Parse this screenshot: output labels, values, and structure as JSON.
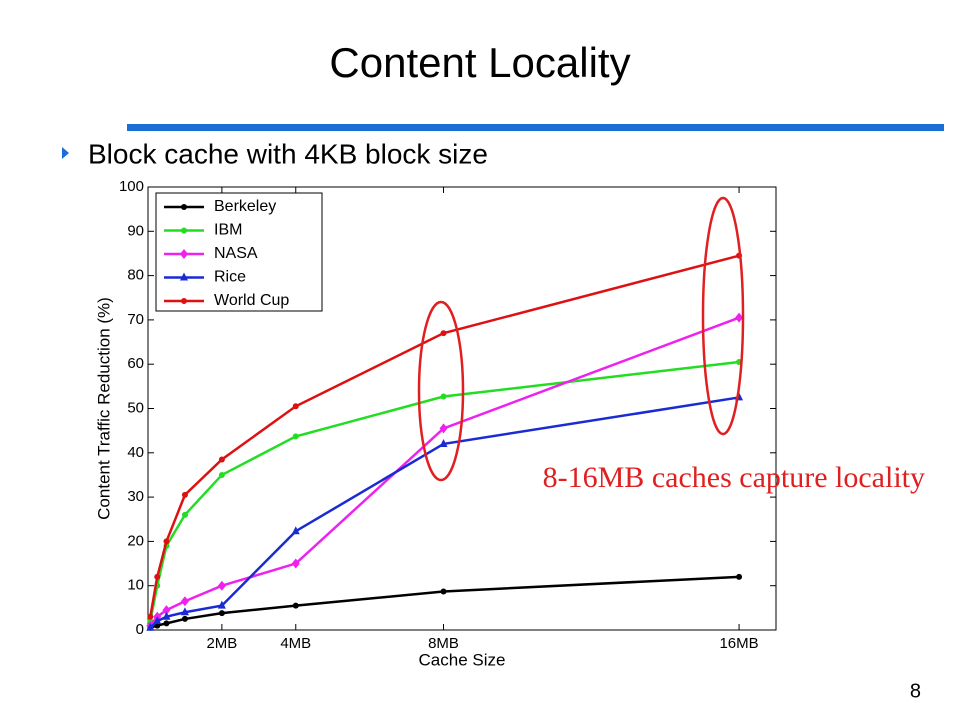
{
  "slide": {
    "title": "Content Locality",
    "bullet": "Block cache with 4KB block size",
    "annotation": "8-16MB caches capture locality",
    "page_number": "8"
  },
  "chart_data": {
    "type": "line",
    "x_label": "Cache Size",
    "y_label": "Content Traffic Reduction (%)",
    "x": [
      0.0625,
      0.25,
      0.5,
      1,
      2,
      4,
      8,
      16
    ],
    "xlim": [
      0,
      17
    ],
    "xticks": [
      {
        "value": 2,
        "label": "2MB"
      },
      {
        "value": 4,
        "label": "4MB"
      },
      {
        "value": 8,
        "label": "8MB"
      },
      {
        "value": 16,
        "label": "16MB"
      }
    ],
    "ylim": [
      0,
      100
    ],
    "yticks": [
      0,
      10,
      20,
      30,
      40,
      50,
      60,
      70,
      80,
      90,
      100
    ],
    "grid": false,
    "legend": "upper left",
    "series": [
      {
        "name": "Berkeley",
        "color": "#000000",
        "marker": "dot",
        "values": [
          0.5,
          1,
          1.5,
          2.5,
          3.8,
          5.5,
          8.7,
          12
        ]
      },
      {
        "name": "IBM",
        "color": "#22dd22",
        "marker": "dot",
        "values": [
          2,
          10,
          19,
          26,
          35,
          43.7,
          52.7,
          60.5
        ]
      },
      {
        "name": "NASA",
        "color": "#ee22ee",
        "marker": "diamond",
        "values": [
          1,
          3,
          4.5,
          6.5,
          10,
          15,
          45.5,
          70.5
        ]
      },
      {
        "name": "Rice",
        "color": "#1a2bd4",
        "marker": "triangle",
        "values": [
          0.5,
          2,
          3,
          4,
          5.5,
          22.3,
          42,
          52.5
        ]
      },
      {
        "name": "World Cup",
        "color": "#dd1111",
        "marker": "dot",
        "values": [
          3,
          12,
          20,
          30.5,
          38.5,
          50.5,
          67,
          84.5
        ]
      }
    ]
  }
}
